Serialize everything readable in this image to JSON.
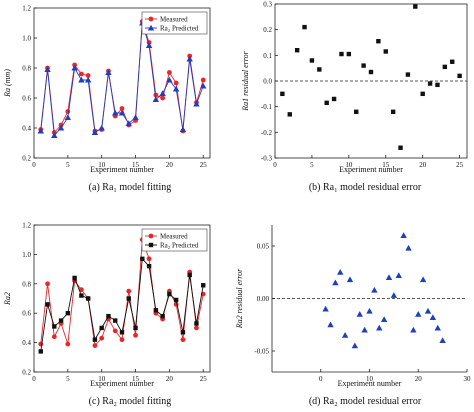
{
  "chart_data": [
    {
      "type": "line",
      "caption": "(a) Ra₁ model fitting",
      "xlabel": "Experiment number",
      "ylabel": "Ra (mm)",
      "xlim": [
        0,
        26
      ],
      "ylim": [
        0.2,
        1.2
      ],
      "xticks": [
        "0",
        "5",
        "10",
        "15",
        "20",
        "25"
      ],
      "yticks": [
        "0.2",
        "0.4",
        "0.6",
        "0.8",
        "1.0",
        "1.2"
      ],
      "legend": "top-right",
      "x": [
        1,
        2,
        3,
        4,
        5,
        6,
        7,
        8,
        9,
        10,
        11,
        12,
        13,
        14,
        15,
        16,
        17,
        18,
        19,
        20,
        21,
        22,
        23,
        24,
        25
      ],
      "series": [
        {
          "name": "Measured",
          "color": "#e8262d",
          "marker": "circle",
          "values": [
            0.39,
            0.8,
            0.37,
            0.42,
            0.51,
            0.82,
            0.76,
            0.75,
            0.38,
            0.39,
            0.78,
            0.48,
            0.53,
            0.42,
            0.45,
            1.11,
            0.97,
            0.62,
            0.6,
            0.77,
            0.7,
            0.38,
            0.88,
            0.57,
            0.72
          ]
        },
        {
          "name": "Ra₂ Predicted",
          "color": "#1f3fbf",
          "marker": "triangle",
          "values": [
            0.38,
            0.79,
            0.35,
            0.4,
            0.47,
            0.8,
            0.72,
            0.72,
            0.37,
            0.4,
            0.77,
            0.5,
            0.5,
            0.43,
            0.47,
            1.1,
            0.95,
            0.59,
            0.63,
            0.72,
            0.66,
            0.39,
            0.86,
            0.56,
            0.68
          ]
        }
      ]
    },
    {
      "type": "scatter",
      "caption": "(b) Ra₁ model residual error",
      "xlabel": "Experiment number",
      "ylabel": "Ra1 residual error",
      "xlim": [
        0,
        26
      ],
      "ylim": [
        -0.3,
        0.3
      ],
      "xticks": [
        "0",
        "5",
        "10",
        "15",
        "20",
        "25"
      ],
      "yticks": [
        "-0.3",
        "-0.2",
        "-0.1",
        "0.0",
        "0.1",
        "0.2",
        "0.3"
      ],
      "reference_line": 0,
      "color": "#111111",
      "marker": "square",
      "x": [
        1,
        2,
        3,
        4,
        5,
        6,
        7,
        8,
        9,
        10,
        11,
        12,
        13,
        14,
        15,
        16,
        17,
        18,
        19,
        20,
        21,
        22,
        23,
        24,
        25
      ],
      "values": [
        -0.05,
        -0.13,
        0.12,
        0.21,
        0.08,
        0.045,
        -0.085,
        -0.07,
        0.105,
        0.105,
        -0.12,
        0.06,
        0.035,
        0.155,
        0.115,
        -0.12,
        -0.26,
        0.025,
        0.29,
        -0.05,
        -0.01,
        -0.015,
        0.055,
        0.075,
        0.02
      ]
    },
    {
      "type": "line",
      "caption": "(c) Ra₂ model fitting",
      "xlabel": "Experiment number",
      "ylabel": "Ra2",
      "xlim": [
        0,
        26
      ],
      "ylim": [
        0.2,
        1.2
      ],
      "xticks": [
        "0",
        "5",
        "10",
        "15",
        "20",
        "25"
      ],
      "yticks": [
        "0.2",
        "0.4",
        "0.6",
        "0.8",
        "1.0",
        "1.2"
      ],
      "legend": "top-right",
      "x": [
        1,
        2,
        3,
        4,
        5,
        6,
        7,
        8,
        9,
        10,
        11,
        12,
        13,
        14,
        15,
        16,
        17,
        18,
        19,
        20,
        21,
        22,
        23,
        24,
        25
      ],
      "series": [
        {
          "name": "Measured",
          "color": "#e8262d",
          "marker": "circle",
          "values": [
            0.39,
            0.8,
            0.44,
            0.53,
            0.39,
            0.82,
            0.76,
            0.7,
            0.38,
            0.43,
            0.56,
            0.48,
            0.42,
            0.75,
            0.45,
            1.1,
            0.97,
            0.6,
            0.56,
            0.75,
            0.66,
            0.42,
            0.88,
            0.5,
            0.73
          ]
        },
        {
          "name": "Ra₂ Predicted",
          "color": "#111111",
          "marker": "square",
          "values": [
            0.34,
            0.66,
            0.51,
            0.55,
            0.6,
            0.84,
            0.72,
            0.7,
            0.42,
            0.5,
            0.58,
            0.55,
            0.47,
            0.7,
            0.5,
            0.97,
            0.92,
            0.62,
            0.58,
            0.73,
            0.69,
            0.47,
            0.86,
            0.53,
            0.79
          ]
        }
      ]
    },
    {
      "type": "scatter",
      "caption": "(d) Ra₂ model residual error",
      "xlabel": "Experiment number",
      "ylabel": "Ra2 residual error",
      "xlim": [
        -10,
        30
      ],
      "ylim": [
        -0.07,
        0.07
      ],
      "xticks": [
        "0",
        "10",
        "20",
        "30"
      ],
      "yticks": [
        "-0.05",
        "0.00",
        "0.05"
      ],
      "reference_line": 0,
      "color": "#1f3fbf",
      "marker": "triangle",
      "x": [
        1,
        2,
        3,
        4,
        5,
        6,
        7,
        8,
        9,
        10,
        11,
        12,
        13,
        14,
        15,
        16,
        17,
        18,
        19,
        20,
        21,
        22,
        23,
        24,
        25
      ],
      "values": [
        -0.01,
        -0.025,
        0.015,
        0.025,
        -0.035,
        0.018,
        -0.045,
        -0.015,
        -0.03,
        -0.012,
        0.008,
        -0.028,
        -0.02,
        0.02,
        0.003,
        0.022,
        0.06,
        0.048,
        -0.03,
        -0.015,
        0.018,
        -0.012,
        -0.018,
        -0.028,
        -0.04
      ]
    }
  ]
}
